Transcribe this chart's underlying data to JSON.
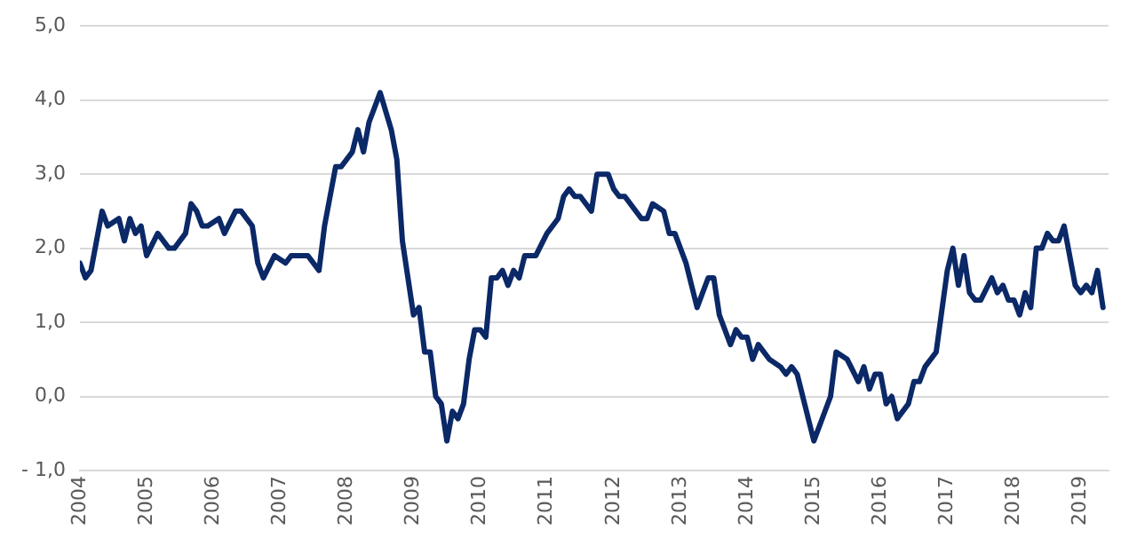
{
  "chart_data": {
    "type": "line",
    "x": [
      "2004-01",
      "2004-02",
      "2004-03",
      "2004-05",
      "2004-06",
      "2004-08",
      "2004-09",
      "2004-10",
      "2004-11",
      "2004-12",
      "2005-01",
      "2005-03",
      "2005-05",
      "2005-06",
      "2005-08",
      "2005-09",
      "2005-10",
      "2005-11",
      "2005-12",
      "2006-02",
      "2006-03",
      "2006-05",
      "2006-06",
      "2006-08",
      "2006-09",
      "2006-10",
      "2006-12",
      "2007-02",
      "2007-03",
      "2007-06",
      "2007-08",
      "2007-09",
      "2007-11",
      "2007-12",
      "2008-02",
      "2008-03",
      "2008-04",
      "2008-05",
      "2008-07",
      "2008-09",
      "2008-10",
      "2008-11",
      "2009-01",
      "2009-02",
      "2009-03",
      "2009-04",
      "2009-05",
      "2009-06",
      "2009-07",
      "2009-08",
      "2009-09",
      "2009-10",
      "2009-11",
      "2009-12",
      "2010-01",
      "2010-02",
      "2010-03",
      "2010-04",
      "2010-05",
      "2010-06",
      "2010-07",
      "2010-08",
      "2010-09",
      "2010-11",
      "2011-01",
      "2011-03",
      "2011-04",
      "2011-05",
      "2011-06",
      "2011-07",
      "2011-09",
      "2011-10",
      "2011-12",
      "2012-01",
      "2012-02",
      "2012-03",
      "2012-06",
      "2012-07",
      "2012-08",
      "2012-10",
      "2012-11",
      "2012-12",
      "2013-01",
      "2013-02",
      "2013-04",
      "2013-06",
      "2013-07",
      "2013-08",
      "2013-10",
      "2013-11",
      "2013-12",
      "2014-01",
      "2014-02",
      "2014-03",
      "2014-05",
      "2014-07",
      "2014-08",
      "2014-09",
      "2014-10",
      "2015-01",
      "2015-03",
      "2015-04",
      "2015-05",
      "2015-07",
      "2015-09",
      "2015-10",
      "2015-11",
      "2015-12",
      "2016-01",
      "2016-02",
      "2016-03",
      "2016-04",
      "2016-06",
      "2016-07",
      "2016-08",
      "2016-09",
      "2016-11",
      "2017-01",
      "2017-02",
      "2017-03",
      "2017-04",
      "2017-05",
      "2017-06",
      "2017-07",
      "2017-09",
      "2017-10",
      "2017-11",
      "2017-12",
      "2018-01",
      "2018-02",
      "2018-03",
      "2018-04",
      "2018-05",
      "2018-06",
      "2018-07",
      "2018-08",
      "2018-09",
      "2018-10",
      "2018-12",
      "2019-01",
      "2019-02",
      "2019-03",
      "2019-04",
      "2019-05"
    ],
    "series": [
      {
        "color": "#0b2867",
        "values": [
          1.8,
          1.6,
          1.7,
          2.5,
          2.3,
          2.4,
          2.1,
          2.4,
          2.2,
          2.3,
          1.9,
          2.2,
          2.0,
          2.0,
          2.2,
          2.6,
          2.5,
          2.3,
          2.3,
          2.4,
          2.2,
          2.5,
          2.5,
          2.3,
          1.8,
          1.6,
          1.9,
          1.8,
          1.9,
          1.9,
          1.7,
          2.3,
          3.1,
          3.1,
          3.3,
          3.6,
          3.3,
          3.7,
          4.1,
          3.6,
          3.2,
          2.1,
          1.1,
          1.2,
          0.6,
          0.6,
          0.0,
          -0.1,
          -0.6,
          -0.2,
          -0.3,
          -0.1,
          0.5,
          0.9,
          0.9,
          0.8,
          1.6,
          1.6,
          1.7,
          1.5,
          1.7,
          1.6,
          1.9,
          1.9,
          2.2,
          2.4,
          2.7,
          2.8,
          2.7,
          2.7,
          2.5,
          3.0,
          3.0,
          2.8,
          2.7,
          2.7,
          2.4,
          2.4,
          2.6,
          2.5,
          2.2,
          2.2,
          2.0,
          1.8,
          1.2,
          1.6,
          1.6,
          1.1,
          0.7,
          0.9,
          0.8,
          0.8,
          0.5,
          0.7,
          0.5,
          0.4,
          0.3,
          0.4,
          0.3,
          -0.6,
          -0.2,
          0.0,
          0.6,
          0.5,
          0.2,
          0.4,
          0.1,
          0.3,
          0.3,
          -0.1,
          0.0,
          -0.3,
          -0.1,
          0.2,
          0.2,
          0.4,
          0.6,
          1.7,
          2.0,
          1.5,
          1.9,
          1.4,
          1.3,
          1.3,
          1.6,
          1.4,
          1.5,
          1.3,
          1.3,
          1.1,
          1.4,
          1.2,
          2.0,
          2.0,
          2.2,
          2.1,
          2.1,
          2.3,
          1.5,
          1.4,
          1.5,
          1.4,
          1.7,
          1.2
        ]
      }
    ],
    "xlim": [
      "2004-01",
      "2019-06"
    ],
    "xticks": [
      "2004",
      "2005",
      "2006",
      "2007",
      "2008",
      "2009",
      "2010",
      "2011",
      "2012",
      "2013",
      "2014",
      "2015",
      "2016",
      "2017",
      "2018",
      "2019"
    ],
    "ylim": [
      -1,
      5
    ],
    "yticks": [
      {
        "value": -1,
        "label": "- 1,0"
      },
      {
        "value": 0,
        "label": "0,0"
      },
      {
        "value": 1,
        "label": "1,0"
      },
      {
        "value": 2,
        "label": "2,0"
      },
      {
        "value": 3,
        "label": "3,0"
      },
      {
        "value": 4,
        "label": "4,0"
      },
      {
        "value": 5,
        "label": "5,0"
      }
    ],
    "grid": "y",
    "legend": false,
    "marker": "none",
    "line_style": "solid"
  }
}
